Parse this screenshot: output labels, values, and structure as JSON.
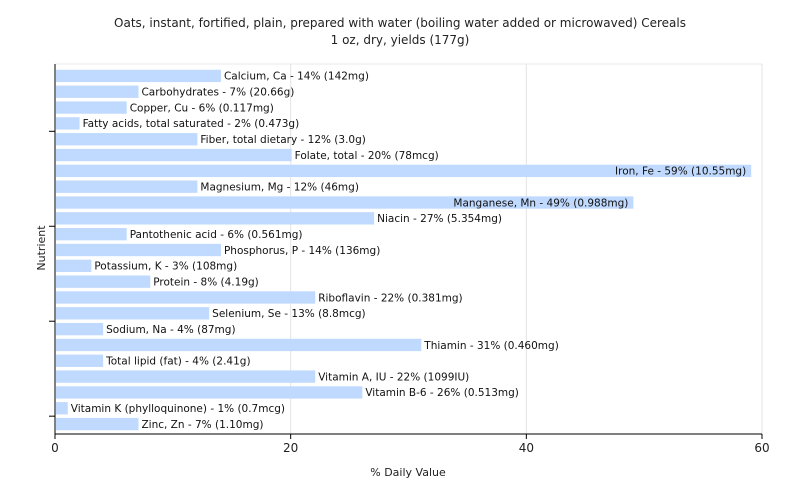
{
  "chart_data": {
    "type": "bar",
    "orientation": "horizontal",
    "title": "Oats, instant, fortified, plain, prepared with water (boiling water added or microwaved) Cereals",
    "subtitle": "1 oz, dry, yields (177g)",
    "xlabel": "% Daily Value",
    "ylabel": "Nutrient",
    "xlim": [
      0,
      60
    ],
    "x_ticks": [
      0,
      20,
      40,
      60
    ],
    "grid": true,
    "bar_color": "#c0daff",
    "categories": [
      "Calcium, Ca",
      "Carbohydrates",
      "Copper, Cu",
      "Fatty acids, total saturated",
      "Fiber, total dietary",
      "Folate, total",
      "Iron, Fe",
      "Magnesium, Mg",
      "Manganese, Mn",
      "Niacin",
      "Pantothenic acid",
      "Phosphorus, P",
      "Potassium, K",
      "Protein",
      "Riboflavin",
      "Selenium, Se",
      "Sodium, Na",
      "Thiamin",
      "Total lipid (fat)",
      "Vitamin A, IU",
      "Vitamin B-6",
      "Vitamin K (phylloquinone)",
      "Zinc, Zn"
    ],
    "values": [
      14,
      7,
      6,
      2,
      12,
      20,
      59,
      12,
      49,
      27,
      6,
      14,
      3,
      8,
      22,
      13,
      4,
      31,
      4,
      22,
      26,
      1,
      7
    ],
    "labels": [
      "Calcium, Ca - 14% (142mg)",
      "Carbohydrates - 7% (20.66g)",
      "Copper, Cu - 6% (0.117mg)",
      "Fatty acids, total saturated - 2% (0.473g)",
      "Fiber, total dietary - 12% (3.0g)",
      "Folate, total - 20% (78mcg)",
      "Iron, Fe - 59% (10.55mg)",
      "Magnesium, Mg - 12% (46mg)",
      "Manganese, Mn - 49% (0.988mg)",
      "Niacin - 27% (5.354mg)",
      "Pantothenic acid - 6% (0.561mg)",
      "Phosphorus, P - 14% (136mg)",
      "Potassium, K - 3% (108mg)",
      "Protein - 8% (4.19g)",
      "Riboflavin - 22% (0.381mg)",
      "Selenium, Se - 13% (8.8mcg)",
      "Sodium, Na - 4% (87mg)",
      "Thiamin - 31% (0.460mg)",
      "Total lipid (fat) - 4% (2.41g)",
      "Vitamin A, IU - 22% (1099IU)",
      "Vitamin B-6 - 26% (0.513mg)",
      "Vitamin K (phylloquinone) - 1% (0.7mcg)",
      "Zinc, Zn - 7% (1.10mg)"
    ]
  }
}
